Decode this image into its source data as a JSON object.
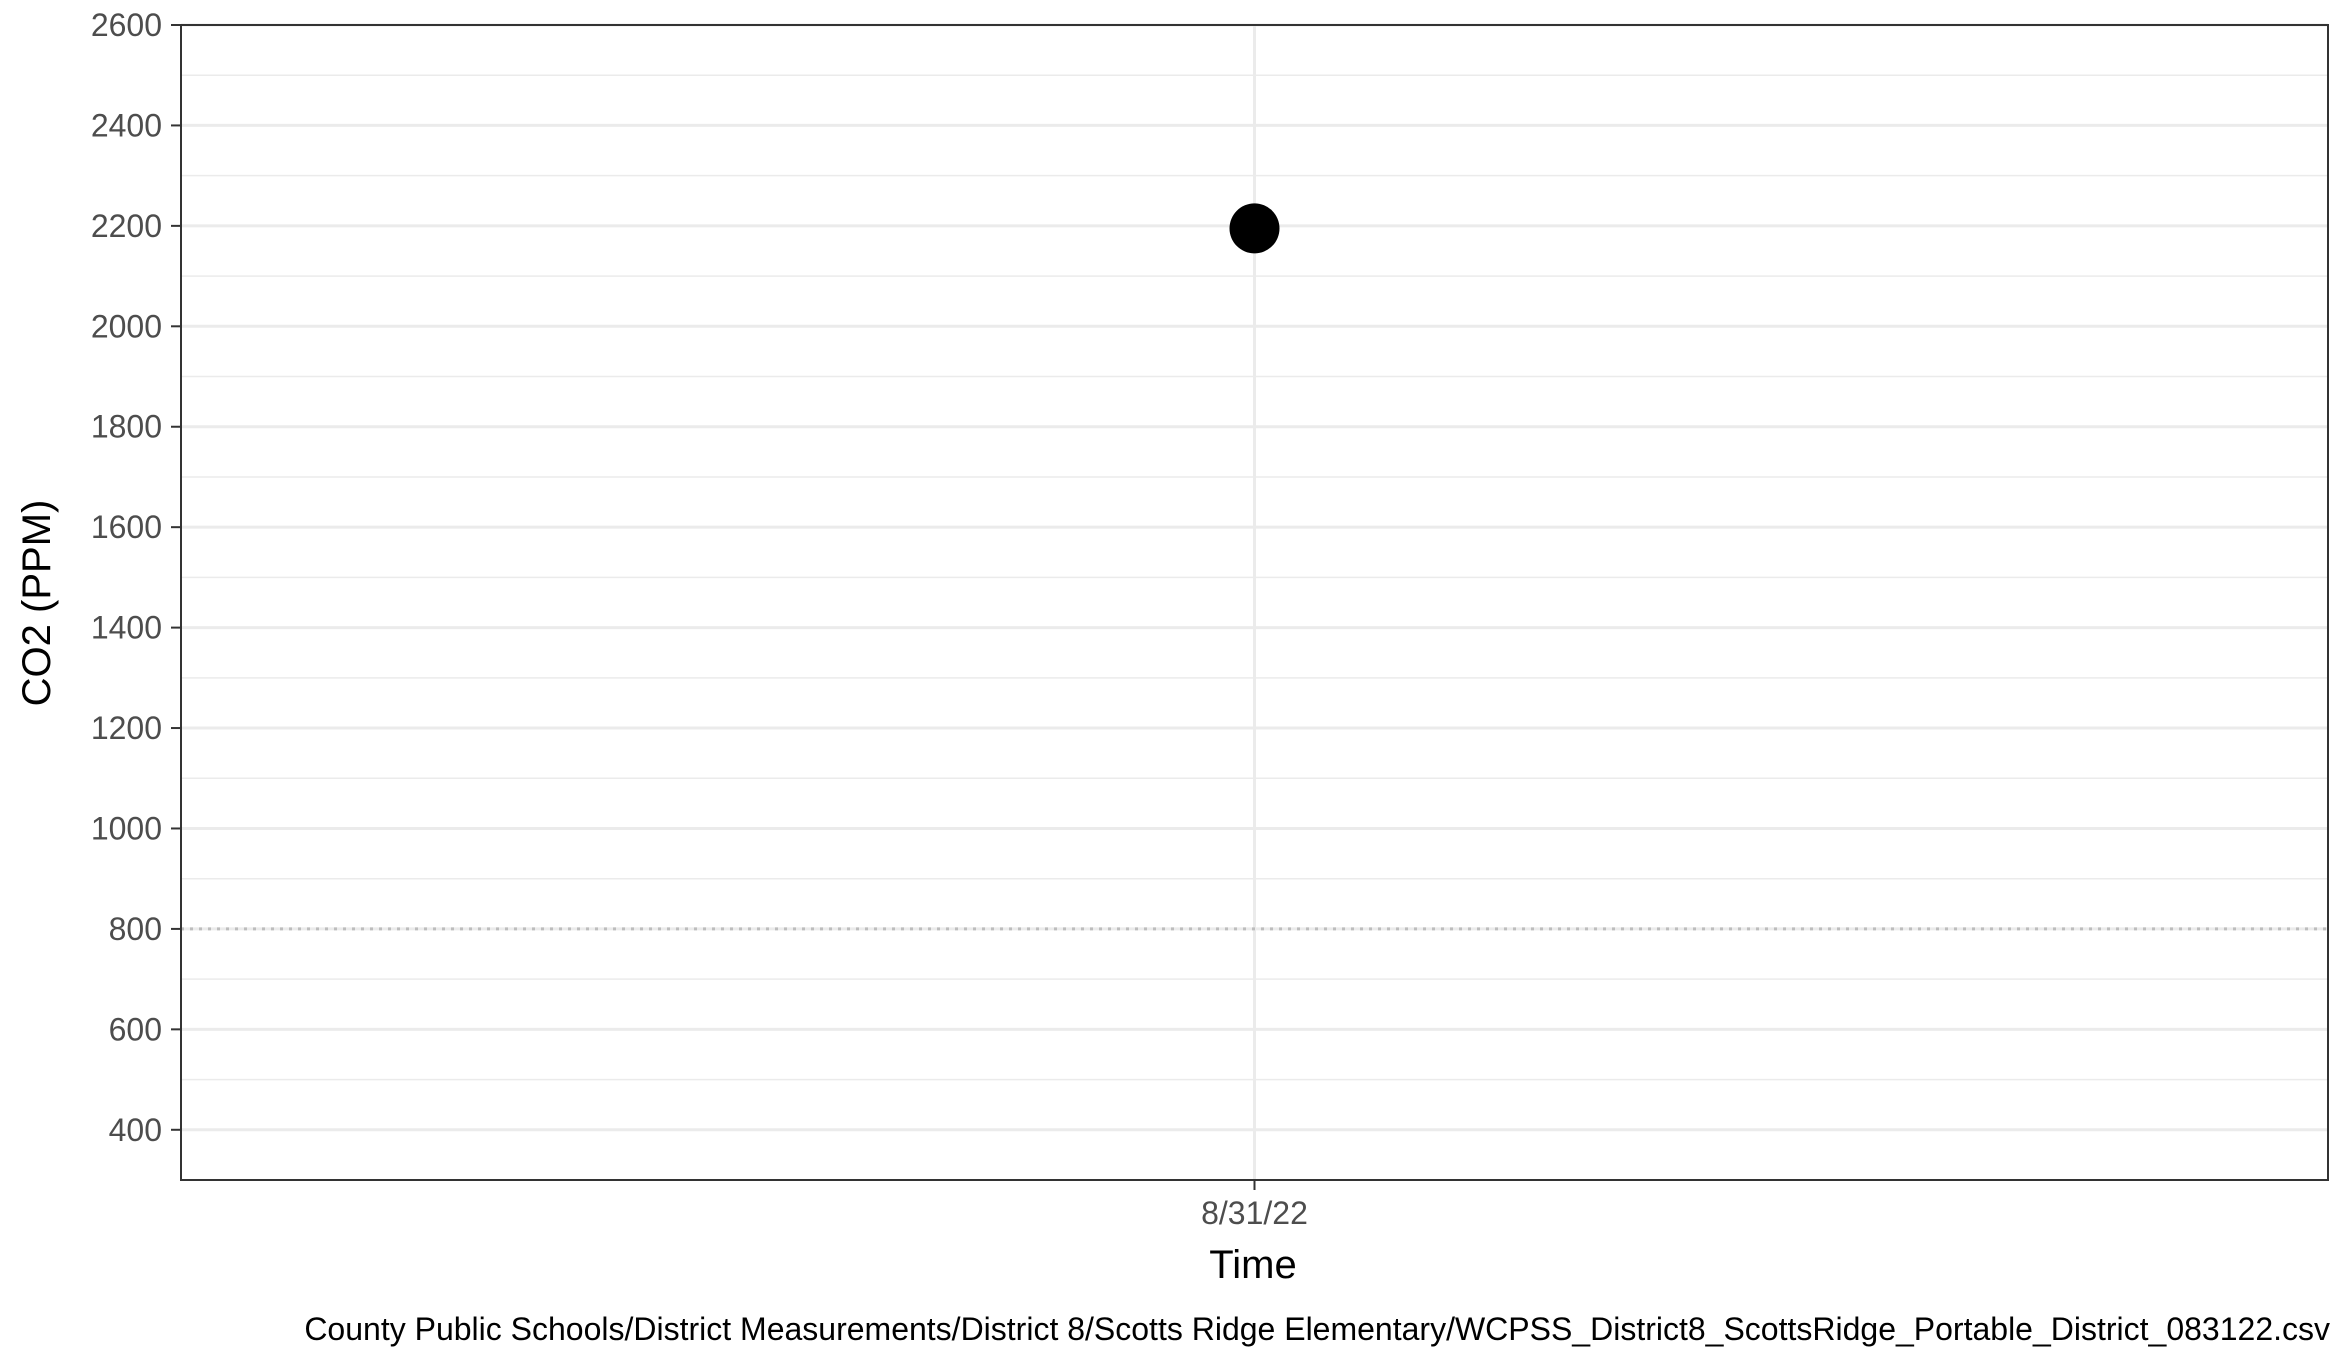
{
  "chart_data": {
    "type": "scatter",
    "xlabel": "Time",
    "ylabel": "CO2 (PPM)",
    "caption": "County Public Schools/District Measurements/District 8/Scotts Ridge Elementary/WCPSS_District8_ScottsRidge_Portable_District_083122.csv",
    "x_ticks": [
      "8/31/22"
    ],
    "y_ticks": [
      400,
      600,
      800,
      1000,
      1200,
      1400,
      1600,
      1800,
      2000,
      2200,
      2400,
      2600
    ],
    "ylim": [
      300,
      2600
    ],
    "points": [
      {
        "x": "8/31/22",
        "y": 2195
      }
    ],
    "reference_line": {
      "y": 800,
      "style": "dotted"
    },
    "grid": true,
    "colors": {
      "point": "#000000",
      "grid": "#ebebeb",
      "reference_line": "#bdbdbd",
      "panel_border": "#333333"
    }
  }
}
